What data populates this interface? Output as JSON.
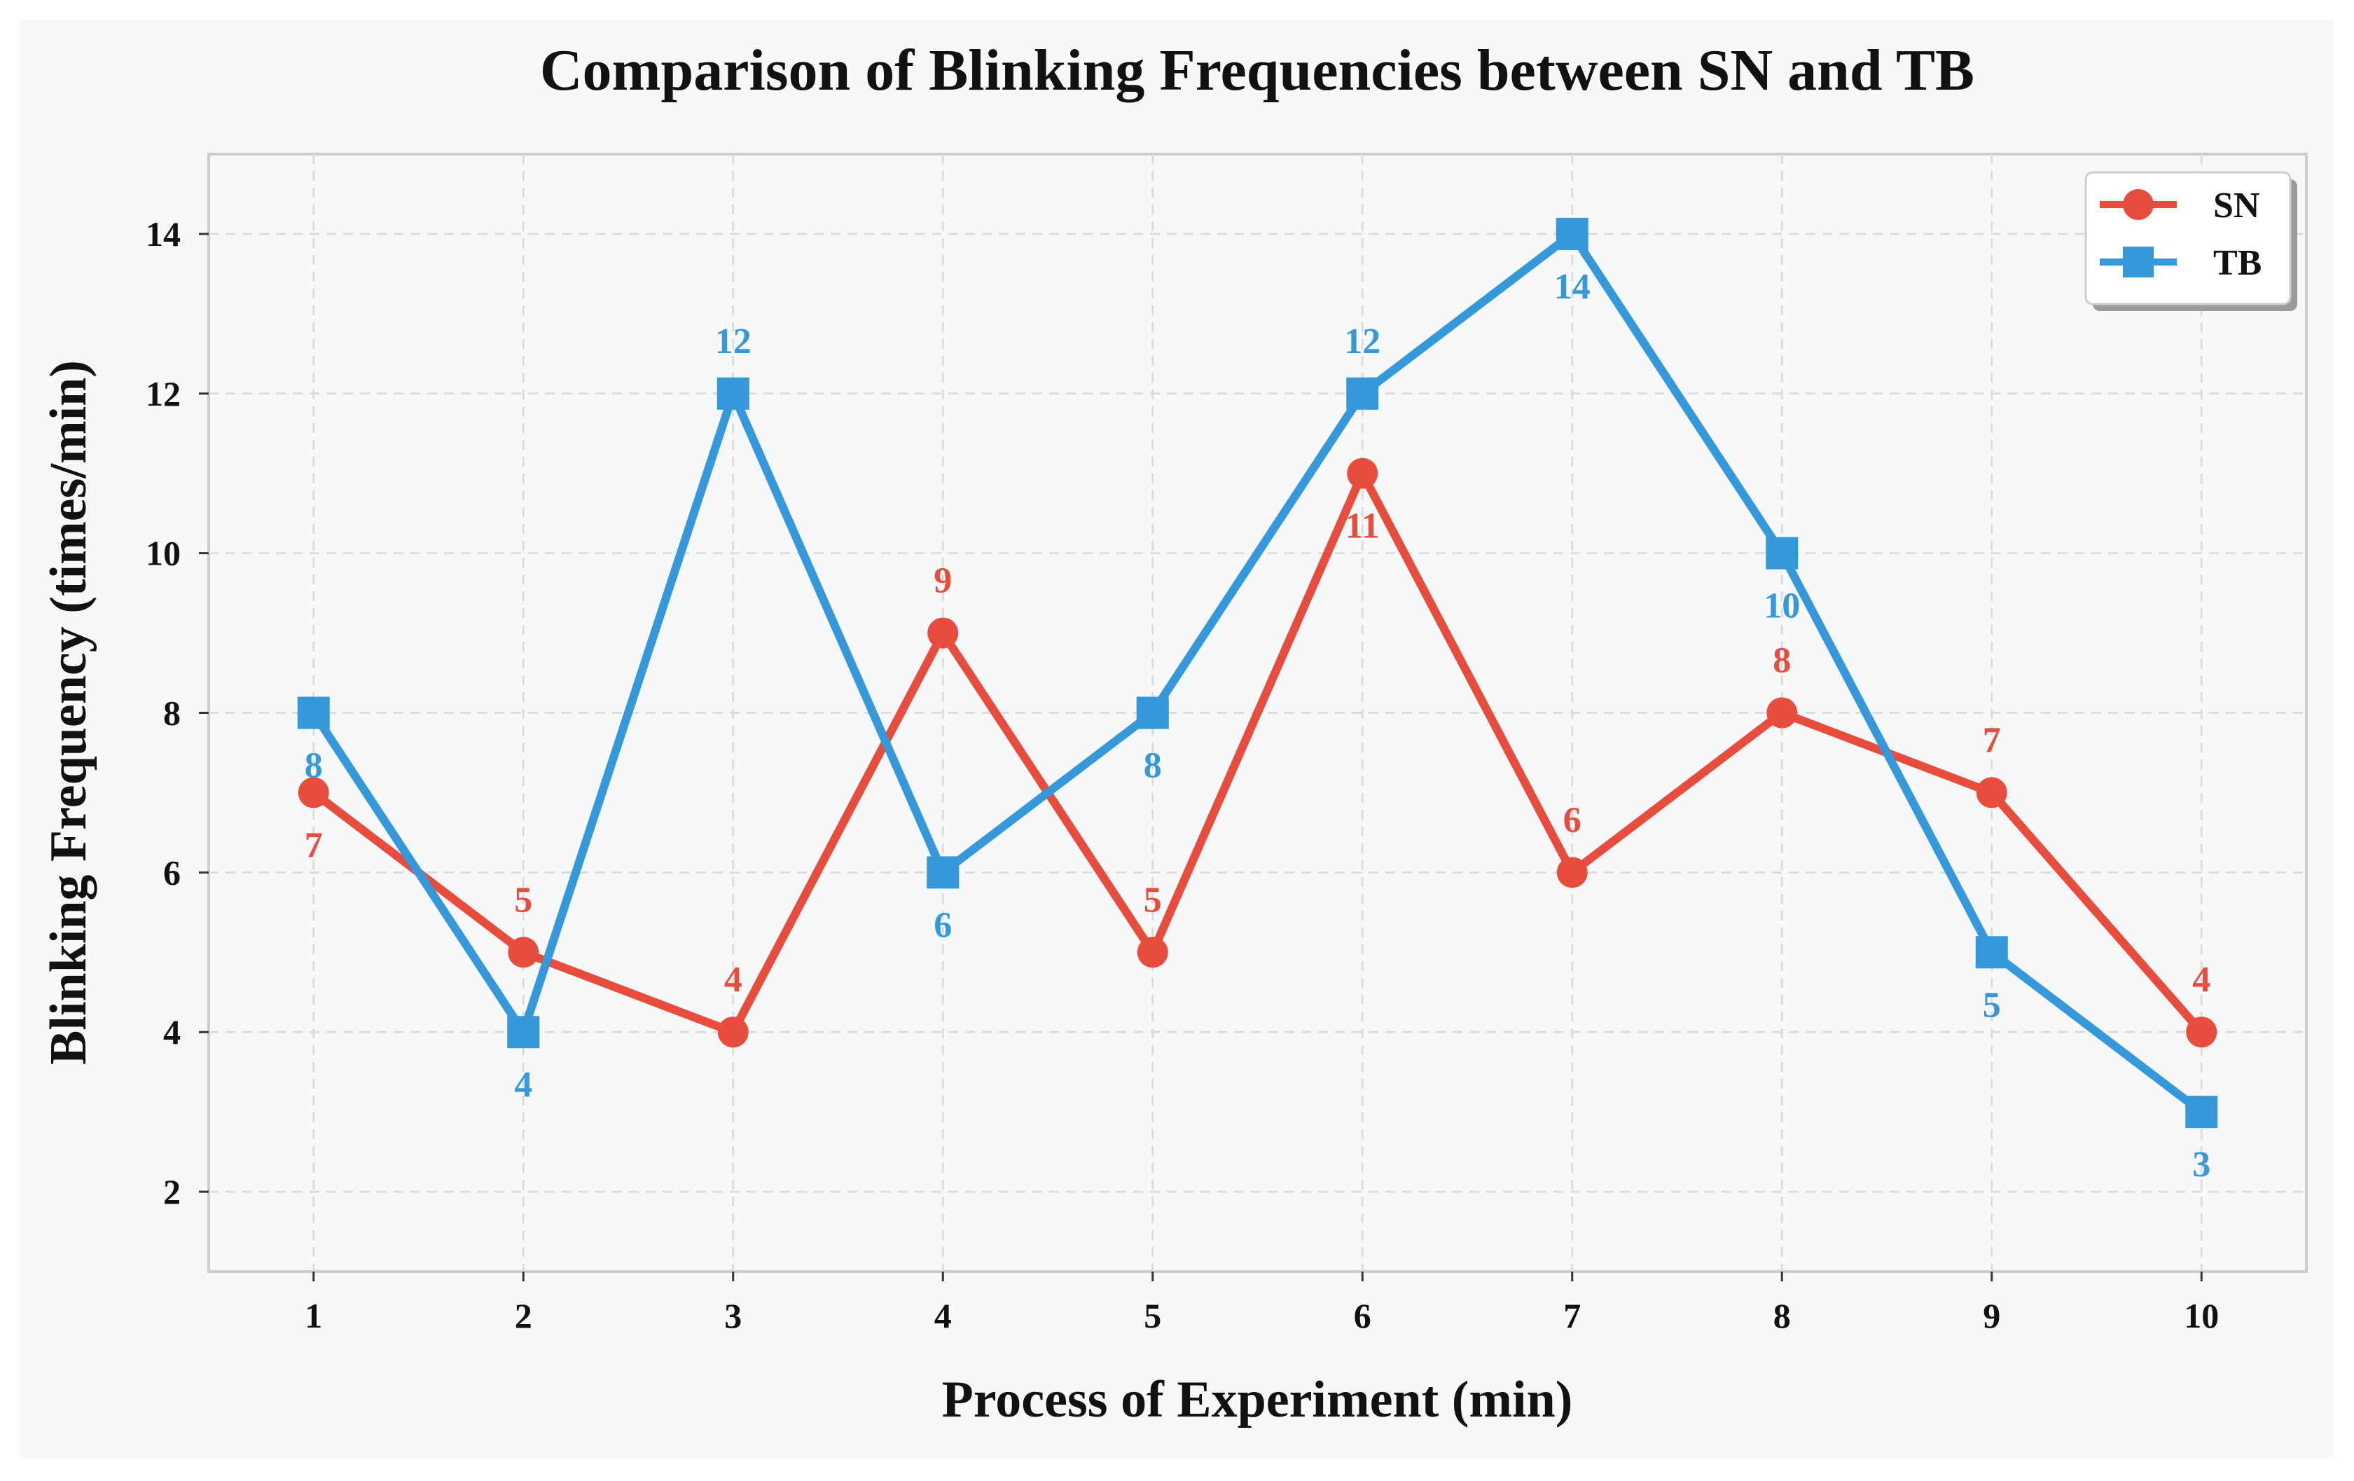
{
  "chart_data": {
    "type": "line",
    "title": "Comparison of Blinking Frequencies between SN and TB",
    "xlabel": "Process of Experiment (min)",
    "ylabel": "Blinking Frequency (times/min)",
    "x": [
      1,
      2,
      3,
      4,
      5,
      6,
      7,
      8,
      9,
      10
    ],
    "x_tick_labels": [
      "1",
      "2",
      "3",
      "4",
      "5",
      "6",
      "7",
      "8",
      "9",
      "10"
    ],
    "y_ticks": [
      2,
      4,
      6,
      8,
      10,
      12,
      14
    ],
    "y_tick_labels": [
      "2",
      "4",
      "6",
      "8",
      "10",
      "12",
      "14"
    ],
    "xlim": [
      0.5,
      10.5
    ],
    "ylim": [
      1,
      15
    ],
    "grid": true,
    "legend_position": "top-right",
    "series": [
      {
        "name": "SN",
        "color": "#e74c3c",
        "marker": "circle",
        "values": [
          7,
          5,
          4,
          9,
          5,
          11,
          6,
          8,
          7,
          4
        ],
        "labels": [
          "7",
          "5",
          "4",
          "9",
          "5",
          "11",
          "6",
          "8",
          "7",
          "4"
        ],
        "label_side": [
          "below",
          "above",
          "above",
          "above",
          "above",
          "below",
          "above",
          "above",
          "above",
          "above"
        ]
      },
      {
        "name": "TB",
        "color": "#3498db",
        "marker": "square",
        "values": [
          8,
          4,
          12,
          6,
          8,
          12,
          14,
          10,
          5,
          3
        ],
        "labels": [
          "8",
          "4",
          "12",
          "6",
          "8",
          "12",
          "14",
          "10",
          "5",
          "3"
        ],
        "label_side": [
          "below",
          "below",
          "above",
          "below",
          "below",
          "above",
          "below",
          "below",
          "below",
          "below"
        ]
      }
    ],
    "colors": {
      "figure_bg": "#f6f8fa",
      "plot_bg": "#f6f8fa",
      "grid": "#dcdcdc",
      "axes": "#cccccc",
      "text": "#111111"
    }
  }
}
